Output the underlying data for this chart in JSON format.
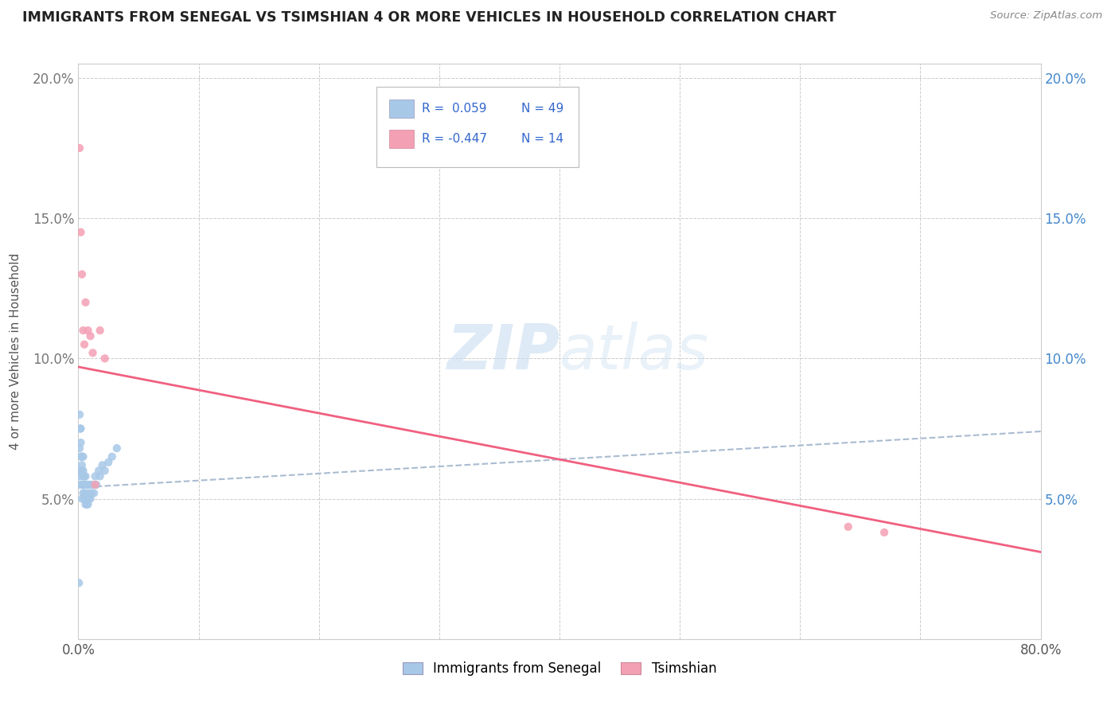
{
  "title": "IMMIGRANTS FROM SENEGAL VS TSIMSHIAN 4 OR MORE VEHICLES IN HOUSEHOLD CORRELATION CHART",
  "source": "Source: ZipAtlas.com",
  "ylabel": "4 or more Vehicles in Household",
  "xlim": [
    0.0,
    0.8
  ],
  "ylim": [
    0.0,
    0.205
  ],
  "senegal_color": "#a8c8e8",
  "tsimshian_color": "#f4a0b4",
  "tsimshian_line_color": "#f06080",
  "senegal_line_color": "#8ab0d0",
  "watermark_text": "ZIPatlas",
  "legend_r_senegal": "R =  0.059",
  "legend_n_senegal": "N = 49",
  "legend_r_tsimshian": "R = -0.447",
  "legend_n_tsimshian": "N = 14",
  "senegal_scatter_x": [
    0.0005,
    0.001,
    0.001,
    0.001,
    0.0015,
    0.0015,
    0.002,
    0.002,
    0.002,
    0.002,
    0.003,
    0.003,
    0.003,
    0.003,
    0.003,
    0.004,
    0.004,
    0.004,
    0.004,
    0.004,
    0.005,
    0.005,
    0.005,
    0.005,
    0.006,
    0.006,
    0.006,
    0.006,
    0.007,
    0.007,
    0.007,
    0.008,
    0.008,
    0.009,
    0.009,
    0.01,
    0.01,
    0.011,
    0.012,
    0.013,
    0.014,
    0.015,
    0.017,
    0.018,
    0.02,
    0.022,
    0.025,
    0.028,
    0.032
  ],
  "senegal_scatter_y": [
    0.02,
    0.055,
    0.068,
    0.08,
    0.06,
    0.075,
    0.058,
    0.065,
    0.07,
    0.075,
    0.05,
    0.055,
    0.06,
    0.062,
    0.065,
    0.052,
    0.055,
    0.058,
    0.06,
    0.065,
    0.05,
    0.052,
    0.055,
    0.058,
    0.048,
    0.05,
    0.055,
    0.058,
    0.048,
    0.05,
    0.055,
    0.048,
    0.052,
    0.05,
    0.055,
    0.05,
    0.055,
    0.052,
    0.055,
    0.052,
    0.058,
    0.055,
    0.06,
    0.058,
    0.062,
    0.06,
    0.063,
    0.065,
    0.068
  ],
  "tsimshian_scatter_x": [
    0.001,
    0.002,
    0.003,
    0.004,
    0.005,
    0.006,
    0.008,
    0.01,
    0.012,
    0.014,
    0.018,
    0.022,
    0.64,
    0.67
  ],
  "tsimshian_scatter_y": [
    0.175,
    0.145,
    0.13,
    0.11,
    0.105,
    0.12,
    0.11,
    0.108,
    0.102,
    0.055,
    0.11,
    0.1,
    0.04,
    0.038
  ],
  "senegal_line_x0": 0.0,
  "senegal_line_x1": 0.8,
  "senegal_line_y0": 0.054,
  "senegal_line_y1": 0.074,
  "tsimshian_line_x0": 0.0,
  "tsimshian_line_x1": 0.8,
  "tsimshian_line_y0": 0.097,
  "tsimshian_line_y1": 0.031
}
